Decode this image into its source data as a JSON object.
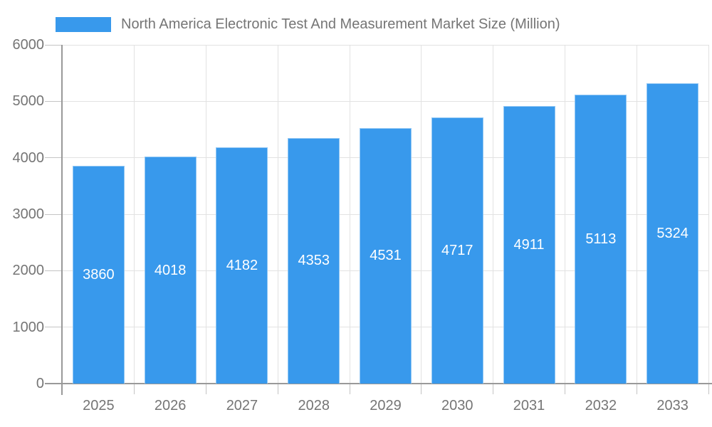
{
  "legend": {
    "label": "North America Electronic Test And Measurement Market Size (Million)"
  },
  "chart_data": {
    "type": "bar",
    "title": "North America Electronic Test And Measurement Market Size (Million)",
    "categories": [
      "2025",
      "2026",
      "2027",
      "2028",
      "2029",
      "2030",
      "2031",
      "2032",
      "2033"
    ],
    "values": [
      3860,
      4018,
      4182,
      4353,
      4531,
      4717,
      4911,
      5113,
      5324
    ],
    "bar_labels": [
      "3860",
      "4018",
      "4182",
      "4353",
      "4531",
      "4717",
      "4911",
      "5113",
      "5324"
    ],
    "xlabel": "",
    "ylabel": "",
    "ylim": [
      0,
      6000
    ],
    "yticks": [
      0,
      1000,
      2000,
      3000,
      4000,
      5000,
      6000
    ],
    "grid": true,
    "legend_position": "top"
  },
  "colors": {
    "bar_fill": "#3899EC",
    "bar_edge": "rgba(255,255,255,0.45)",
    "grid_line": "#E2E2E2",
    "axis_line": "#999999",
    "tick_mark": "#C4C4C4",
    "axis_text": "#757575",
    "bar_label_text": "#FFFFFF",
    "background": "#FFFFFF"
  }
}
